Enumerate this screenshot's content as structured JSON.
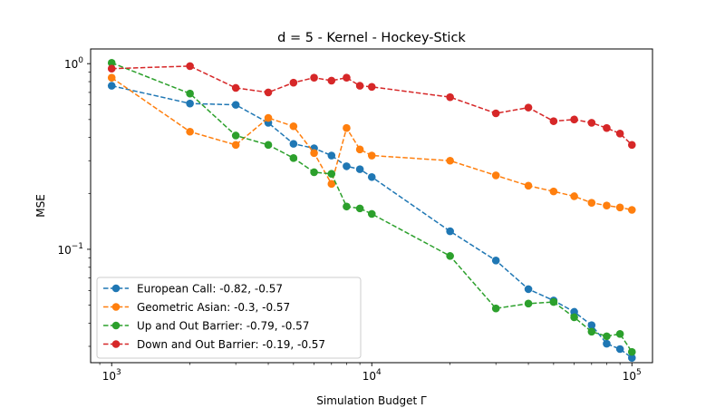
{
  "chart_data": {
    "type": "line",
    "title": "d = 5 - Kernel - Hockey-Stick",
    "xlabel": "Simulation Budget Γ",
    "ylabel": "MSE",
    "xscale": "log",
    "yscale": "log",
    "xlim": [
      830,
      120000
    ],
    "ylim": [
      0.0245,
      1.2
    ],
    "x_ticks": [
      {
        "value": 1000,
        "base": "10",
        "exp": "3"
      },
      {
        "value": 10000,
        "base": "10",
        "exp": "4"
      },
      {
        "value": 100000,
        "base": "10",
        "exp": "5"
      }
    ],
    "y_ticks": [
      {
        "value": 0.1,
        "base": "10",
        "exp": "−1"
      },
      {
        "value": 1,
        "base": "10",
        "exp": "0"
      }
    ],
    "legend_position": "lower-left",
    "grid": false,
    "x": [
      1000,
      2000,
      3000,
      4000,
      5000,
      6000,
      7000,
      8000,
      9000,
      10000,
      20000,
      30000,
      40000,
      50000,
      60000,
      70000,
      80000,
      90000,
      100000
    ],
    "series": [
      {
        "name": "European Call: -0.82, -0.57",
        "color": "#1f77b4",
        "values": [
          0.76,
          0.61,
          0.6,
          0.48,
          0.37,
          0.35,
          0.32,
          0.28,
          0.27,
          0.245,
          0.125,
          0.087,
          0.061,
          0.053,
          0.046,
          0.039,
          0.031,
          0.029,
          0.026
        ]
      },
      {
        "name": "Geometric Asian: -0.3, -0.57",
        "color": "#ff7f0e",
        "values": [
          0.84,
          0.43,
          0.365,
          0.51,
          0.46,
          0.33,
          0.225,
          0.45,
          0.345,
          0.32,
          0.3,
          0.25,
          0.22,
          0.205,
          0.193,
          0.178,
          0.172,
          0.168,
          0.163
        ]
      },
      {
        "name": "Up and Out Barrier: -0.79, -0.57",
        "color": "#2ca02c",
        "values": [
          1.01,
          0.69,
          0.41,
          0.365,
          0.31,
          0.26,
          0.255,
          0.17,
          0.166,
          0.155,
          0.092,
          0.048,
          0.051,
          0.052,
          0.043,
          0.036,
          0.034,
          0.035,
          0.028
        ]
      },
      {
        "name": "Down and Out Barrier: -0.19, -0.57",
        "color": "#d62728",
        "values": [
          0.94,
          0.97,
          0.74,
          0.7,
          0.79,
          0.84,
          0.81,
          0.84,
          0.76,
          0.75,
          0.66,
          0.54,
          0.58,
          0.49,
          0.5,
          0.48,
          0.45,
          0.42,
          0.365
        ]
      }
    ]
  }
}
